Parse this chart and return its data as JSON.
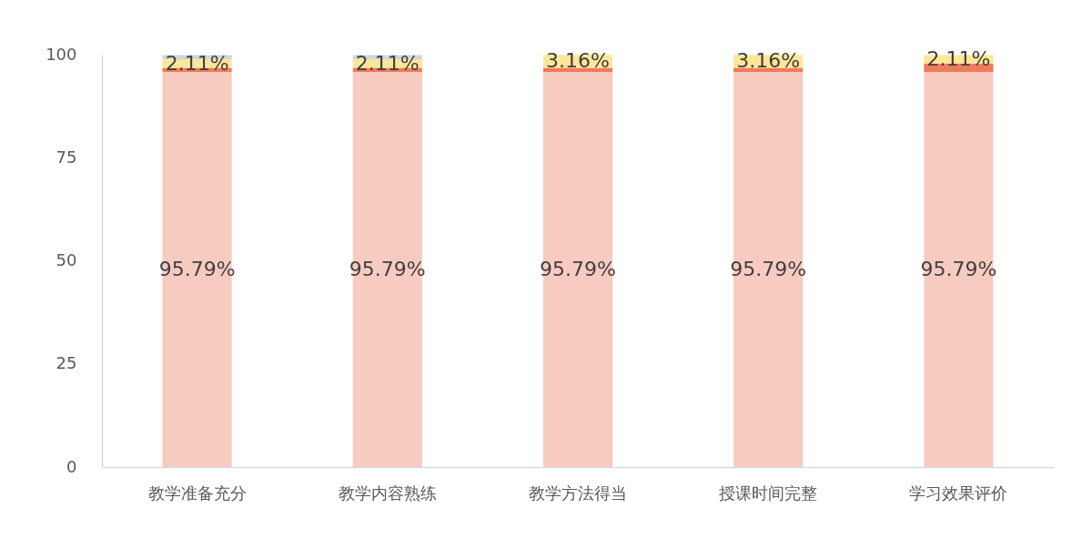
{
  "chart_data": {
    "type": "bar",
    "stacked": true,
    "categories": [
      "教学准备充分",
      "教学内容熟练",
      "教学方法得当",
      "授课时间完整",
      "学习效果评价"
    ],
    "series": [
      {
        "color": "#f8cbc0",
        "values": [
          95.79,
          95.79,
          95.79,
          95.79,
          95.79
        ],
        "value_labels": [
          "95.79%",
          "95.79%",
          "95.79%",
          "95.79%",
          "95.79%"
        ]
      },
      {
        "color": "#ee7b5a",
        "values": [
          1,
          1,
          1,
          1,
          2
        ]
      },
      {
        "color": "#ffe699",
        "values": [
          2.11,
          2.11,
          3.16,
          3.16,
          2.11
        ],
        "value_labels": [
          "2.11%",
          "2.11%",
          "3.16%",
          "3.16%",
          "2.11%"
        ]
      },
      {
        "color": "#cdd5e0",
        "values": [
          1,
          1,
          0,
          0,
          0
        ]
      }
    ],
    "ylim": [
      0,
      100
    ],
    "yticks": [
      0,
      25,
      50,
      75,
      100
    ]
  }
}
